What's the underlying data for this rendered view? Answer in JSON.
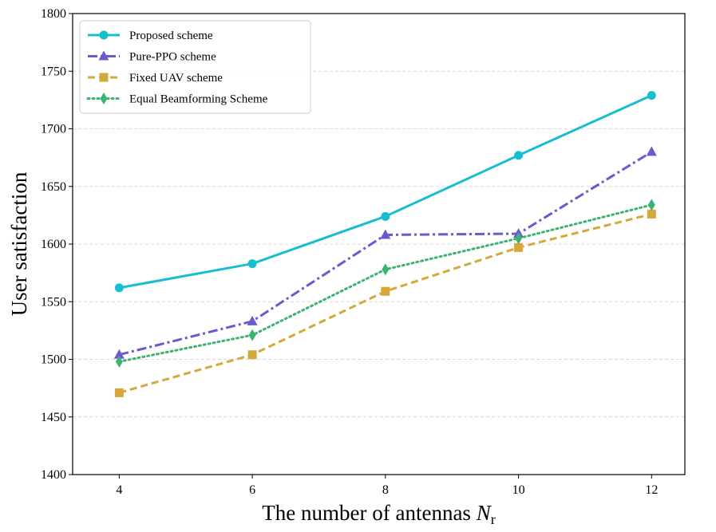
{
  "chart_data": {
    "type": "line",
    "xlabel": "The number of antennas",
    "xlabel_symbol": "N",
    "xlabel_subscript": "r",
    "ylabel": "User satisfaction",
    "x": [
      4,
      6,
      8,
      10,
      12
    ],
    "x_ticks": [
      4,
      6,
      8,
      10,
      12
    ],
    "xlim": [
      3.3,
      12.5
    ],
    "ylim": [
      1400,
      1800
    ],
    "y_ticks": [
      1400,
      1450,
      1500,
      1550,
      1600,
      1650,
      1700,
      1750,
      1800
    ],
    "grid": "y-dashed",
    "legend_position": "top-left",
    "series": [
      {
        "name": "Proposed scheme",
        "color": "#17becf",
        "linestyle": "solid",
        "marker": "circle",
        "values": [
          1562,
          1583,
          1624,
          1677,
          1729
        ]
      },
      {
        "name": "Pure-PPO scheme",
        "color": "#6a5acd",
        "linestyle": "dashdot",
        "marker": "triangle",
        "values": [
          1504,
          1533,
          1608,
          1609,
          1680
        ]
      },
      {
        "name": "Fixed UAV scheme",
        "color": "#d4a93a",
        "linestyle": "dashed",
        "marker": "square",
        "values": [
          1471,
          1504,
          1559,
          1597,
          1626
        ]
      },
      {
        "name": "Equal Beamforming Scheme",
        "color": "#3cb371",
        "linestyle": "dotted",
        "marker": "diamond",
        "values": [
          1498,
          1521,
          1578,
          1605,
          1634
        ]
      }
    ]
  }
}
